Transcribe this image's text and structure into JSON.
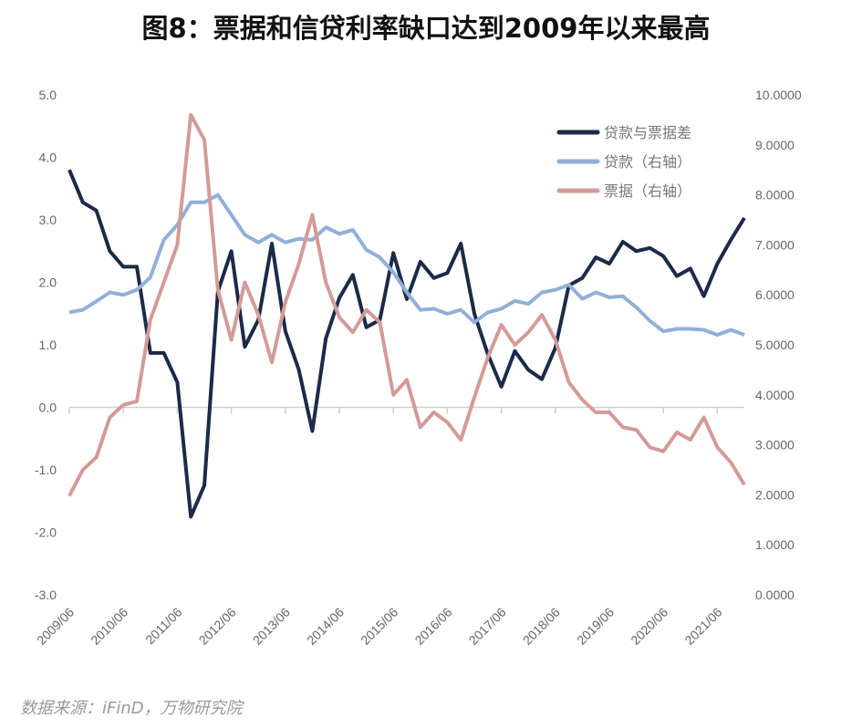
{
  "chart_data": {
    "type": "line",
    "title": "图8：票据和信贷利率缺口达到2009年以来最高",
    "source": "数据来源：iFinD，万物研究院",
    "x_tick_labels": [
      "2009/06",
      "2010/06",
      "2011/06",
      "2012/06",
      "2013/06",
      "2014/06",
      "2015/06",
      "2016/06",
      "2017/06",
      "2018/06",
      "2019/06",
      "2020/06",
      "2021/06"
    ],
    "x_range": [
      "2009/06",
      "2021/12"
    ],
    "x_frequency": "quarterly",
    "y_left": {
      "ylim": [
        -3,
        5
      ],
      "ticks": [
        "-3.0",
        "-2.0",
        "-1.0",
        "0.0",
        "1.0",
        "2.0",
        "3.0",
        "4.0",
        "5.0"
      ]
    },
    "y_right": {
      "ylim": [
        0,
        10
      ],
      "ticks": [
        "0.0000",
        "1.0000",
        "2.0000",
        "3.0000",
        "4.0000",
        "5.0000",
        "6.0000",
        "7.0000",
        "8.0000",
        "9.0000",
        "10.0000"
      ]
    },
    "grid": false,
    "legend_position": "top-right",
    "series": [
      {
        "name": "贷款与票据差",
        "axis": "left",
        "color": "#1b2a47",
        "values": [
          3.8,
          3.28,
          3.15,
          2.5,
          2.25,
          2.25,
          0.87,
          0.87,
          0.4,
          -1.75,
          -1.25,
          1.85,
          2.5,
          0.97,
          1.4,
          2.62,
          1.22,
          0.6,
          -0.38,
          1.1,
          1.75,
          2.12,
          1.28,
          1.4,
          2.47,
          1.73,
          2.33,
          2.07,
          2.15,
          2.62,
          1.5,
          0.85,
          0.33,
          0.9,
          0.6,
          0.45,
          0.95,
          1.95,
          2.07,
          2.4,
          2.3,
          2.65,
          2.5,
          2.55,
          2.42,
          2.1,
          2.22,
          1.78,
          2.3,
          2.68,
          3.03
        ]
      },
      {
        "name": "贷款（右轴）",
        "axis": "right",
        "color": "#92afd7",
        "values": [
          5.65,
          5.7,
          5.87,
          6.05,
          6.0,
          6.1,
          6.35,
          7.1,
          7.4,
          7.85,
          7.85,
          8.0,
          7.6,
          7.2,
          7.05,
          7.2,
          7.05,
          7.12,
          7.1,
          7.35,
          7.22,
          7.3,
          6.9,
          6.75,
          6.45,
          6.05,
          5.7,
          5.72,
          5.62,
          5.7,
          5.45,
          5.65,
          5.72,
          5.88,
          5.82,
          6.05,
          6.1,
          6.2,
          5.92,
          6.05,
          5.95,
          5.97,
          5.75,
          5.48,
          5.27,
          5.32,
          5.32,
          5.3,
          5.2,
          5.3,
          5.2
        ]
      },
      {
        "name": "票据（右轴）",
        "axis": "right",
        "color": "#d39b98",
        "values": [
          1.98,
          2.5,
          2.75,
          3.55,
          3.8,
          3.87,
          5.5,
          6.25,
          7.0,
          9.6,
          9.1,
          6.1,
          5.1,
          6.25,
          5.6,
          4.65,
          5.85,
          6.62,
          7.6,
          6.25,
          5.55,
          5.25,
          5.7,
          5.45,
          4.0,
          4.3,
          3.35,
          3.65,
          3.45,
          3.1,
          3.95,
          4.75,
          5.4,
          5.0,
          5.25,
          5.6,
          5.1,
          4.25,
          3.9,
          3.65,
          3.65,
          3.35,
          3.3,
          2.95,
          2.87,
          3.25,
          3.1,
          3.55,
          2.95,
          2.65,
          2.2
        ]
      }
    ]
  }
}
